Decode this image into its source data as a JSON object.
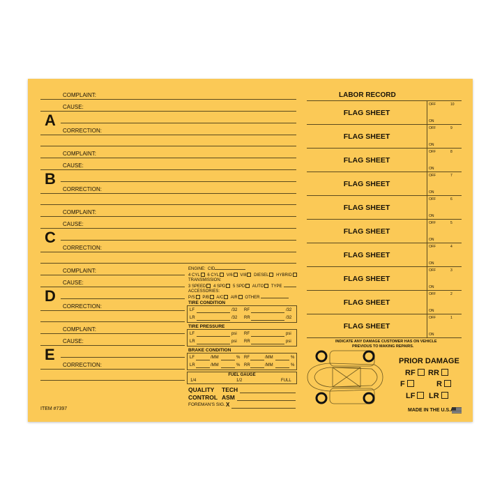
{
  "sections": [
    {
      "letter": "A"
    },
    {
      "letter": "B"
    },
    {
      "letter": "C"
    },
    {
      "letter": "D"
    },
    {
      "letter": "E"
    }
  ],
  "labels": {
    "complaint": "COMPLAINT:",
    "cause": "CAUSE:",
    "correction": "CORRECTION:"
  },
  "vehicle": {
    "engine": "ENGINE:",
    "cid": "CID",
    "engine_options": [
      "4 CYL",
      "6 CYL",
      "V/6",
      "V/8",
      "DIESEL",
      "HYBRID"
    ],
    "transmission": "TRANSMISSION:",
    "transmission_options": [
      "3 SPEED",
      "4 SPD",
      "5 SPD",
      "AUTO"
    ],
    "type": "TYPE",
    "accessories": "ACCESSORIES:",
    "accessory_options": [
      "P/S",
      "P/B",
      "A/C",
      "AIR"
    ],
    "other": "OTHER",
    "tire_condition": "TIRE CONDITION",
    "tire_pressure": "TIRE PRESSURE",
    "brake_condition": "BRAKE CONDITION",
    "fuel_gauge": "FUEL GAUGE",
    "fuel_marks": [
      "1/4",
      "1/2",
      "FULL"
    ],
    "lf": "LF",
    "rf": "RF",
    "lr": "LR",
    "rr": "RR",
    "per32": "/32",
    "psi": "psi",
    "mm": "/MM",
    "pct": "%",
    "quality": "QUALITY",
    "control": "CONTROL",
    "tech": "TECH",
    "asm": "ASM",
    "foreman": "FOREMAN'S SIG.",
    "x": "X"
  },
  "labor": {
    "title": "LABOR RECORD",
    "row_label": "FLAG SHEET",
    "off": "OFF",
    "on": "ON",
    "numbers": [
      "10",
      "9",
      "8",
      "7",
      "6",
      "5",
      "4",
      "3",
      "2",
      "1"
    ]
  },
  "damage": {
    "note1": "INDICATE ANY DAMAGE CUSTOMER HAS ON VEHICLE",
    "note2": "PREVIOUS TO MAKING REPAIRS.",
    "title": "PRIOR DAMAGE",
    "spots": [
      "RF",
      "RR",
      "F",
      "R",
      "LF",
      "LR"
    ]
  },
  "footer": {
    "item": "ITEM #7397",
    "made": "MADE IN THE U.S.A."
  },
  "colors": {
    "card": "#fbc956",
    "ink": "#1a1408"
  }
}
